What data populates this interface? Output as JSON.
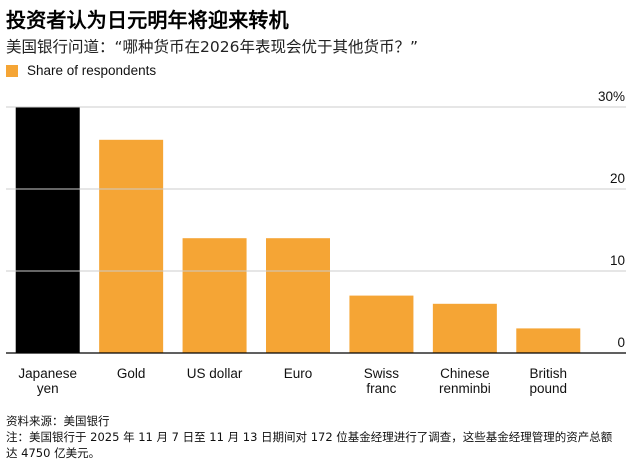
{
  "title": "投资者认为日元明年将迎来转机",
  "subtitle": "美国银行问道：“哪种货币在2026年表现会优于其他货币？”",
  "legend": {
    "label": "Share of respondents",
    "color": "#f5a535"
  },
  "source": "资料来源：美国银行",
  "note": "注：美国银行于 2025 年 11 月 7 日至 11 月 13 日期间对 172 位基金经理进行了调查，这些基金经理管理的资产总额达 4750 亿美元。",
  "colors": {
    "highlight": "#000000",
    "bar": "#f5a535",
    "grid": "#cccccc"
  },
  "chart_data": {
    "type": "bar",
    "categories": [
      [
        "Japanese",
        "yen"
      ],
      [
        "Gold"
      ],
      [
        "US dollar"
      ],
      [
        "Euro"
      ],
      [
        "Swiss",
        "franc"
      ],
      [
        "Chinese",
        "renminbi"
      ],
      [
        "British",
        "pound"
      ]
    ],
    "series": [
      {
        "name": "Share of respondents",
        "values": [
          30,
          26,
          14,
          14,
          7,
          6,
          3
        ]
      }
    ],
    "highlight_index": 0,
    "ylim": [
      0,
      30
    ],
    "yticks": [
      0,
      10,
      20,
      30
    ],
    "ytick_labels": [
      "0",
      "10",
      "20",
      "30%"
    ],
    "y_axis_side": "right",
    "grid": true
  }
}
